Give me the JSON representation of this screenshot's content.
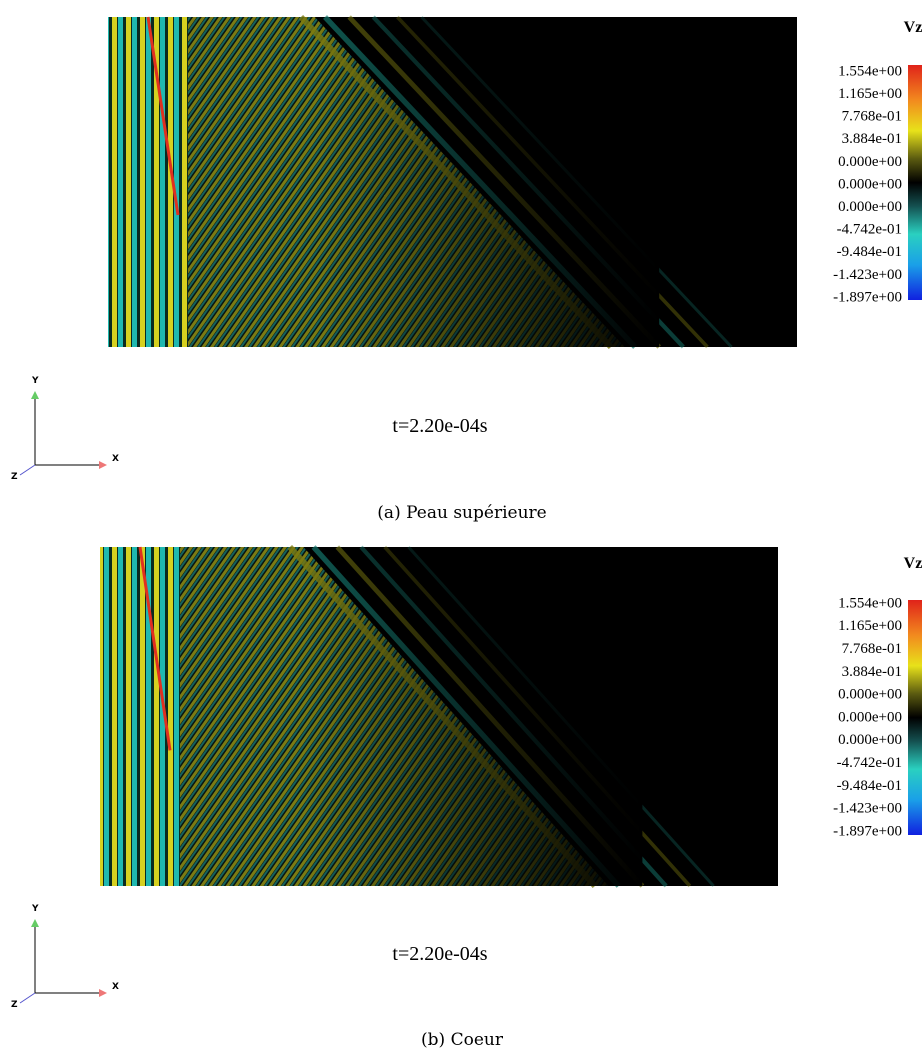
{
  "panels": [
    {
      "legend_title": "Vz",
      "legend_labels": [
        "1.554e+00",
        "1.165e+00",
        "7.768e-01",
        "3.884e-01",
        "0.000e+00",
        "0.000e+00",
        "0.000e+00",
        "-4.742e-01",
        "-9.484e-01",
        "-1.423e+00",
        "-1.897e+00"
      ],
      "time_label": "t=2.20e-04s",
      "axes": {
        "x": "X",
        "y": "Y",
        "z": "Z"
      },
      "caption": "(a) Peau supérieure"
    },
    {
      "legend_title": "Vz",
      "legend_labels": [
        "1.554e+00",
        "1.165e+00",
        "7.768e-01",
        "3.884e-01",
        "0.000e+00",
        "0.000e+00",
        "0.000e+00",
        "-4.742e-01",
        "-9.484e-01",
        "-1.423e+00",
        "-1.897e+00"
      ],
      "time_label": "t=2.20e-04s",
      "axes": {
        "x": "X",
        "y": "Y",
        "z": "Z"
      },
      "caption": "(b) Coeur"
    }
  ]
}
